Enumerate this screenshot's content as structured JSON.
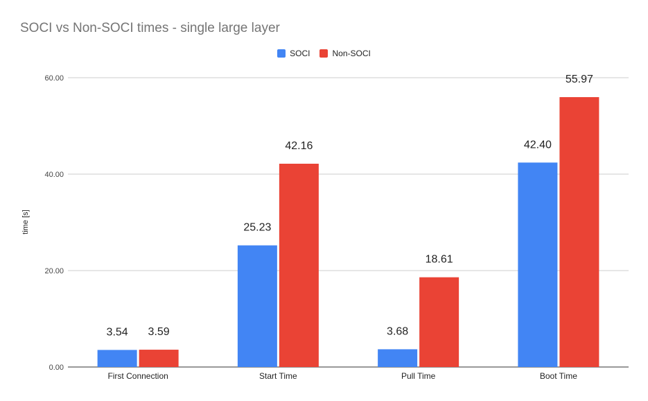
{
  "chart_data": {
    "type": "bar",
    "title": "SOCI vs Non-SOCI times - single large layer",
    "xlabel": "",
    "ylabel": "time [s]",
    "categories": [
      "First Connection",
      "Start Time",
      "Pull Time",
      "Boot Time"
    ],
    "series": [
      {
        "name": "SOCI",
        "color": "#4285f4",
        "values": [
          3.54,
          25.23,
          3.68,
          42.4
        ],
        "labels": [
          "3.54",
          "25.23",
          "3.68",
          "42.40"
        ]
      },
      {
        "name": "Non-SOCI",
        "color": "#ea4335",
        "values": [
          3.59,
          42.16,
          18.61,
          55.97
        ],
        "labels": [
          "3.59",
          "42.16",
          "18.61",
          "55.97"
        ]
      }
    ],
    "ylim": [
      0,
      60
    ],
    "yticks": [
      0,
      20,
      40,
      60
    ],
    "ytick_labels": [
      "0.00",
      "20.00",
      "40.00",
      "60.00"
    ],
    "grid": true,
    "legend_position": "top"
  }
}
